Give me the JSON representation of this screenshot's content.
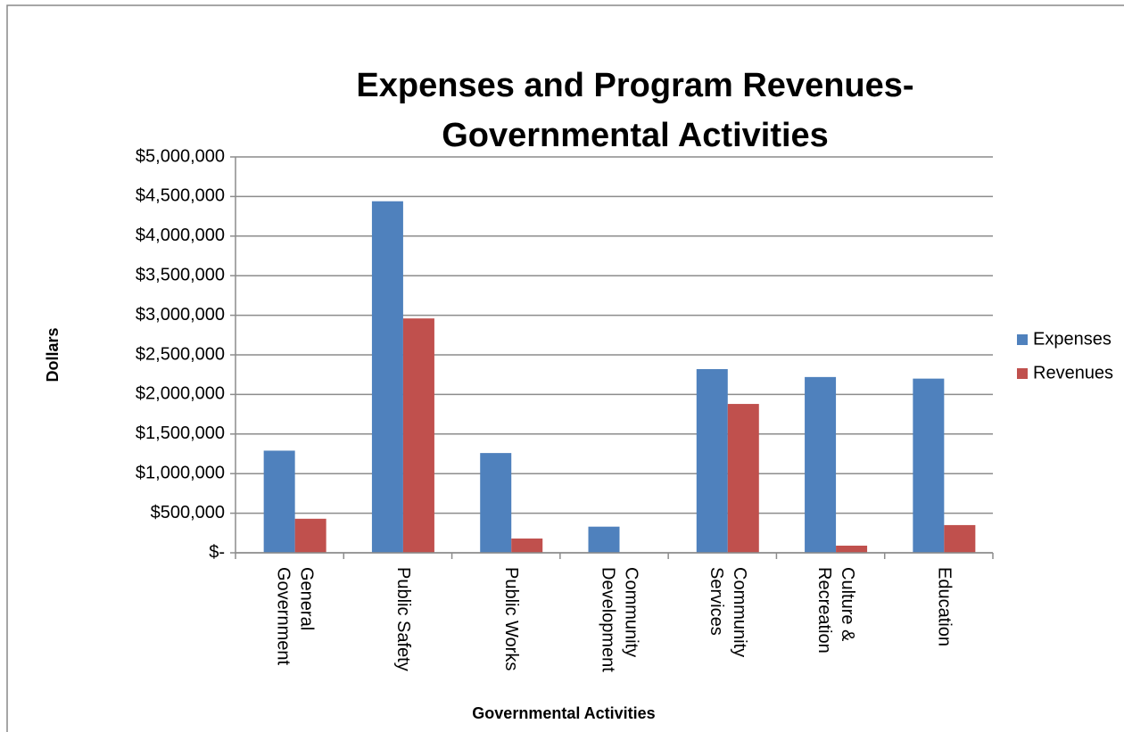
{
  "chart_data": {
    "type": "bar",
    "title": "Expenses and Program Revenues-Governmental Activities",
    "x_label": "Governmental Activities",
    "y_label": "Dollars",
    "categories": [
      "General Government",
      "Public Safety",
      "Public Works",
      "Community Development",
      "Community Services",
      "Culture & Recreation",
      "Education"
    ],
    "series": [
      {
        "name": "Expenses",
        "color": "#4f81bd",
        "values": [
          1290000,
          4440000,
          1260000,
          330000,
          2320000,
          2220000,
          2200000
        ]
      },
      {
        "name": "Revenues",
        "color": "#c0504d",
        "values": [
          430000,
          2960000,
          180000,
          0,
          1880000,
          90000,
          350000
        ]
      }
    ],
    "ylim": [
      0,
      5000000
    ],
    "yticks": [
      {
        "value": 0,
        "label": "$-"
      },
      {
        "value": 500000,
        "label": "$500,000"
      },
      {
        "value": 1000000,
        "label": "$1,000,000"
      },
      {
        "value": 1500000,
        "label": "$1,500,000"
      },
      {
        "value": 2000000,
        "label": "$2,000,000"
      },
      {
        "value": 2500000,
        "label": "$2,500,000"
      },
      {
        "value": 3000000,
        "label": "$3,000,000"
      },
      {
        "value": 3500000,
        "label": "$3,500,000"
      },
      {
        "value": 4000000,
        "label": "$4,000,000"
      },
      {
        "value": 4500000,
        "label": "$4,500,000"
      },
      {
        "value": 5000000,
        "label": "$5,000,000"
      }
    ],
    "grid": true,
    "legend": "right"
  }
}
